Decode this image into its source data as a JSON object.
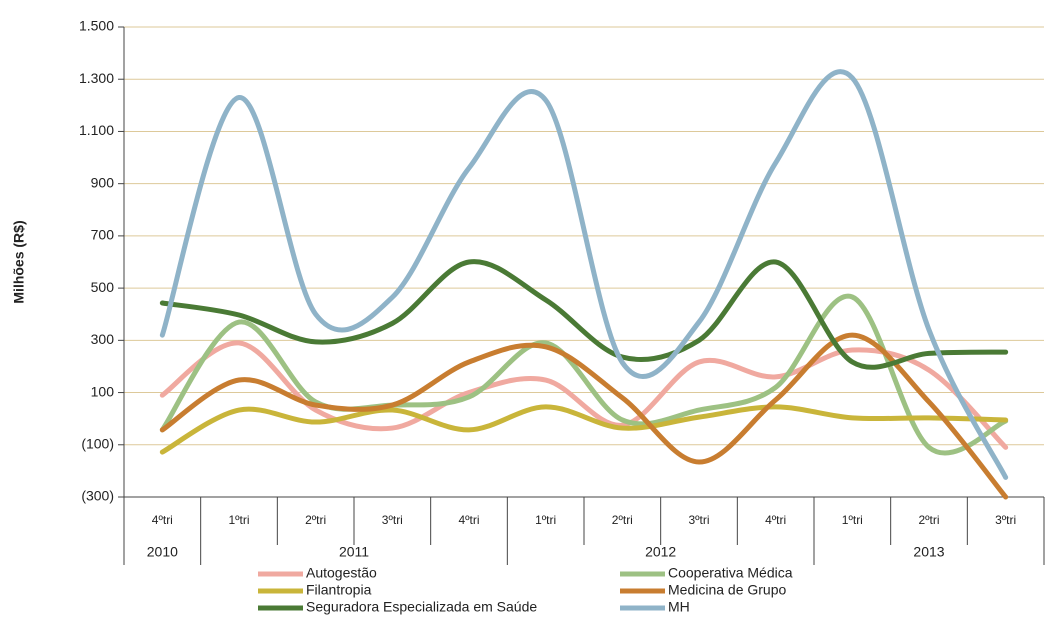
{
  "chart_data": {
    "type": "line",
    "y_label": "Milhões (R$)",
    "categories": [
      "4ºtri",
      "1ºtri",
      "2ºtri",
      "3ºtri",
      "4ºtri",
      "1ºtri",
      "2ºtri",
      "3ºtri",
      "4ºtri",
      "1ºtri",
      "2ºtri",
      "3ºtri"
    ],
    "year_groups": [
      {
        "year": "2010",
        "quarters": 1
      },
      {
        "year": "2011",
        "quarters": 4
      },
      {
        "year": "2012",
        "quarters": 4
      },
      {
        "year": "2013",
        "quarters": 3
      }
    ],
    "ylim": [
      -300,
      1500
    ],
    "yticks": [
      {
        "value": -300,
        "label": "(300)"
      },
      {
        "value": -100,
        "label": "(100)"
      },
      100,
      300,
      500,
      700,
      900,
      {
        "value": 1100,
        "label": "1.100"
      },
      {
        "value": 1300,
        "label": "1.300"
      },
      {
        "value": 1500,
        "label": "1.500"
      }
    ],
    "grid": true,
    "smooth": true,
    "series": [
      {
        "name": "Autogestão",
        "color": "#f0a9a0",
        "values": [
          90,
          290,
          33,
          -36,
          100,
          148,
          -25,
          217,
          160,
          263,
          186,
          -110
        ]
      },
      {
        "name": "Cooperativa Médica",
        "color": "#9dc183",
        "values": [
          -43,
          370,
          64,
          52,
          83,
          290,
          -5,
          33,
          120,
          466,
          -110,
          -9
        ]
      },
      {
        "name": "Filantropia",
        "color": "#c9b53a",
        "values": [
          -128,
          33,
          -13,
          33,
          -43,
          45,
          -36,
          6,
          45,
          3,
          3,
          -5
        ]
      },
      {
        "name": "Medicina de Grupo",
        "color": "#c87d30",
        "values": [
          -43,
          148,
          52,
          52,
          217,
          275,
          80,
          -166,
          72,
          320,
          64,
          -300
        ]
      },
      {
        "name": "Seguradora Especializada em Saúde",
        "color": "#4a7a35",
        "values": [
          443,
          397,
          294,
          365,
          600,
          455,
          236,
          300,
          600,
          217,
          250,
          255
        ]
      },
      {
        "name": "MH",
        "color": "#8fb3c8",
        "values": [
          320,
          1230,
          400,
          465,
          960,
          1220,
          215,
          370,
          980,
          1305,
          340,
          -225
        ]
      }
    ]
  }
}
